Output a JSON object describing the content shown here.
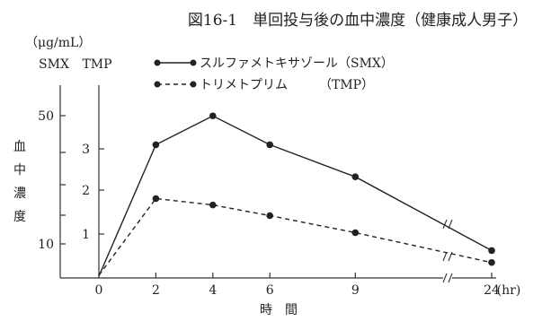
{
  "chart_data": {
    "type": "line",
    "title": "図16-1　単回投与後の血中濃度（健康成人男子）",
    "unit_label": "（μg/mL）",
    "left_axis_label": "SMX",
    "right_axis_label": "TMP",
    "ylabel_chars": [
      "血",
      "中",
      "濃",
      "度"
    ],
    "xlabel": "時　間",
    "x_unit_label": "(hr)",
    "x_ticks": [
      "0",
      "2",
      "4",
      "6",
      "9",
      "24"
    ],
    "x": [
      0,
      2,
      4,
      6,
      9,
      24
    ],
    "smx_ticks": [
      "50",
      "10"
    ],
    "tmp_ticks": [
      "3",
      "2",
      "1"
    ],
    "series": [
      {
        "name": "スルファメトキサゾール（SMX）",
        "axis": "SMX",
        "style": "solid",
        "values": [
          0,
          41,
          50,
          41,
          31,
          8
        ]
      },
      {
        "name": "トリメトプリム　　　（TMP）",
        "axis": "TMP",
        "style": "dashed",
        "values": [
          0,
          1.8,
          1.65,
          1.4,
          1.0,
          0.3
        ]
      }
    ],
    "axis_break": "between 9 and 24",
    "colors": {
      "line": "#222222",
      "axis": "#333333"
    }
  }
}
